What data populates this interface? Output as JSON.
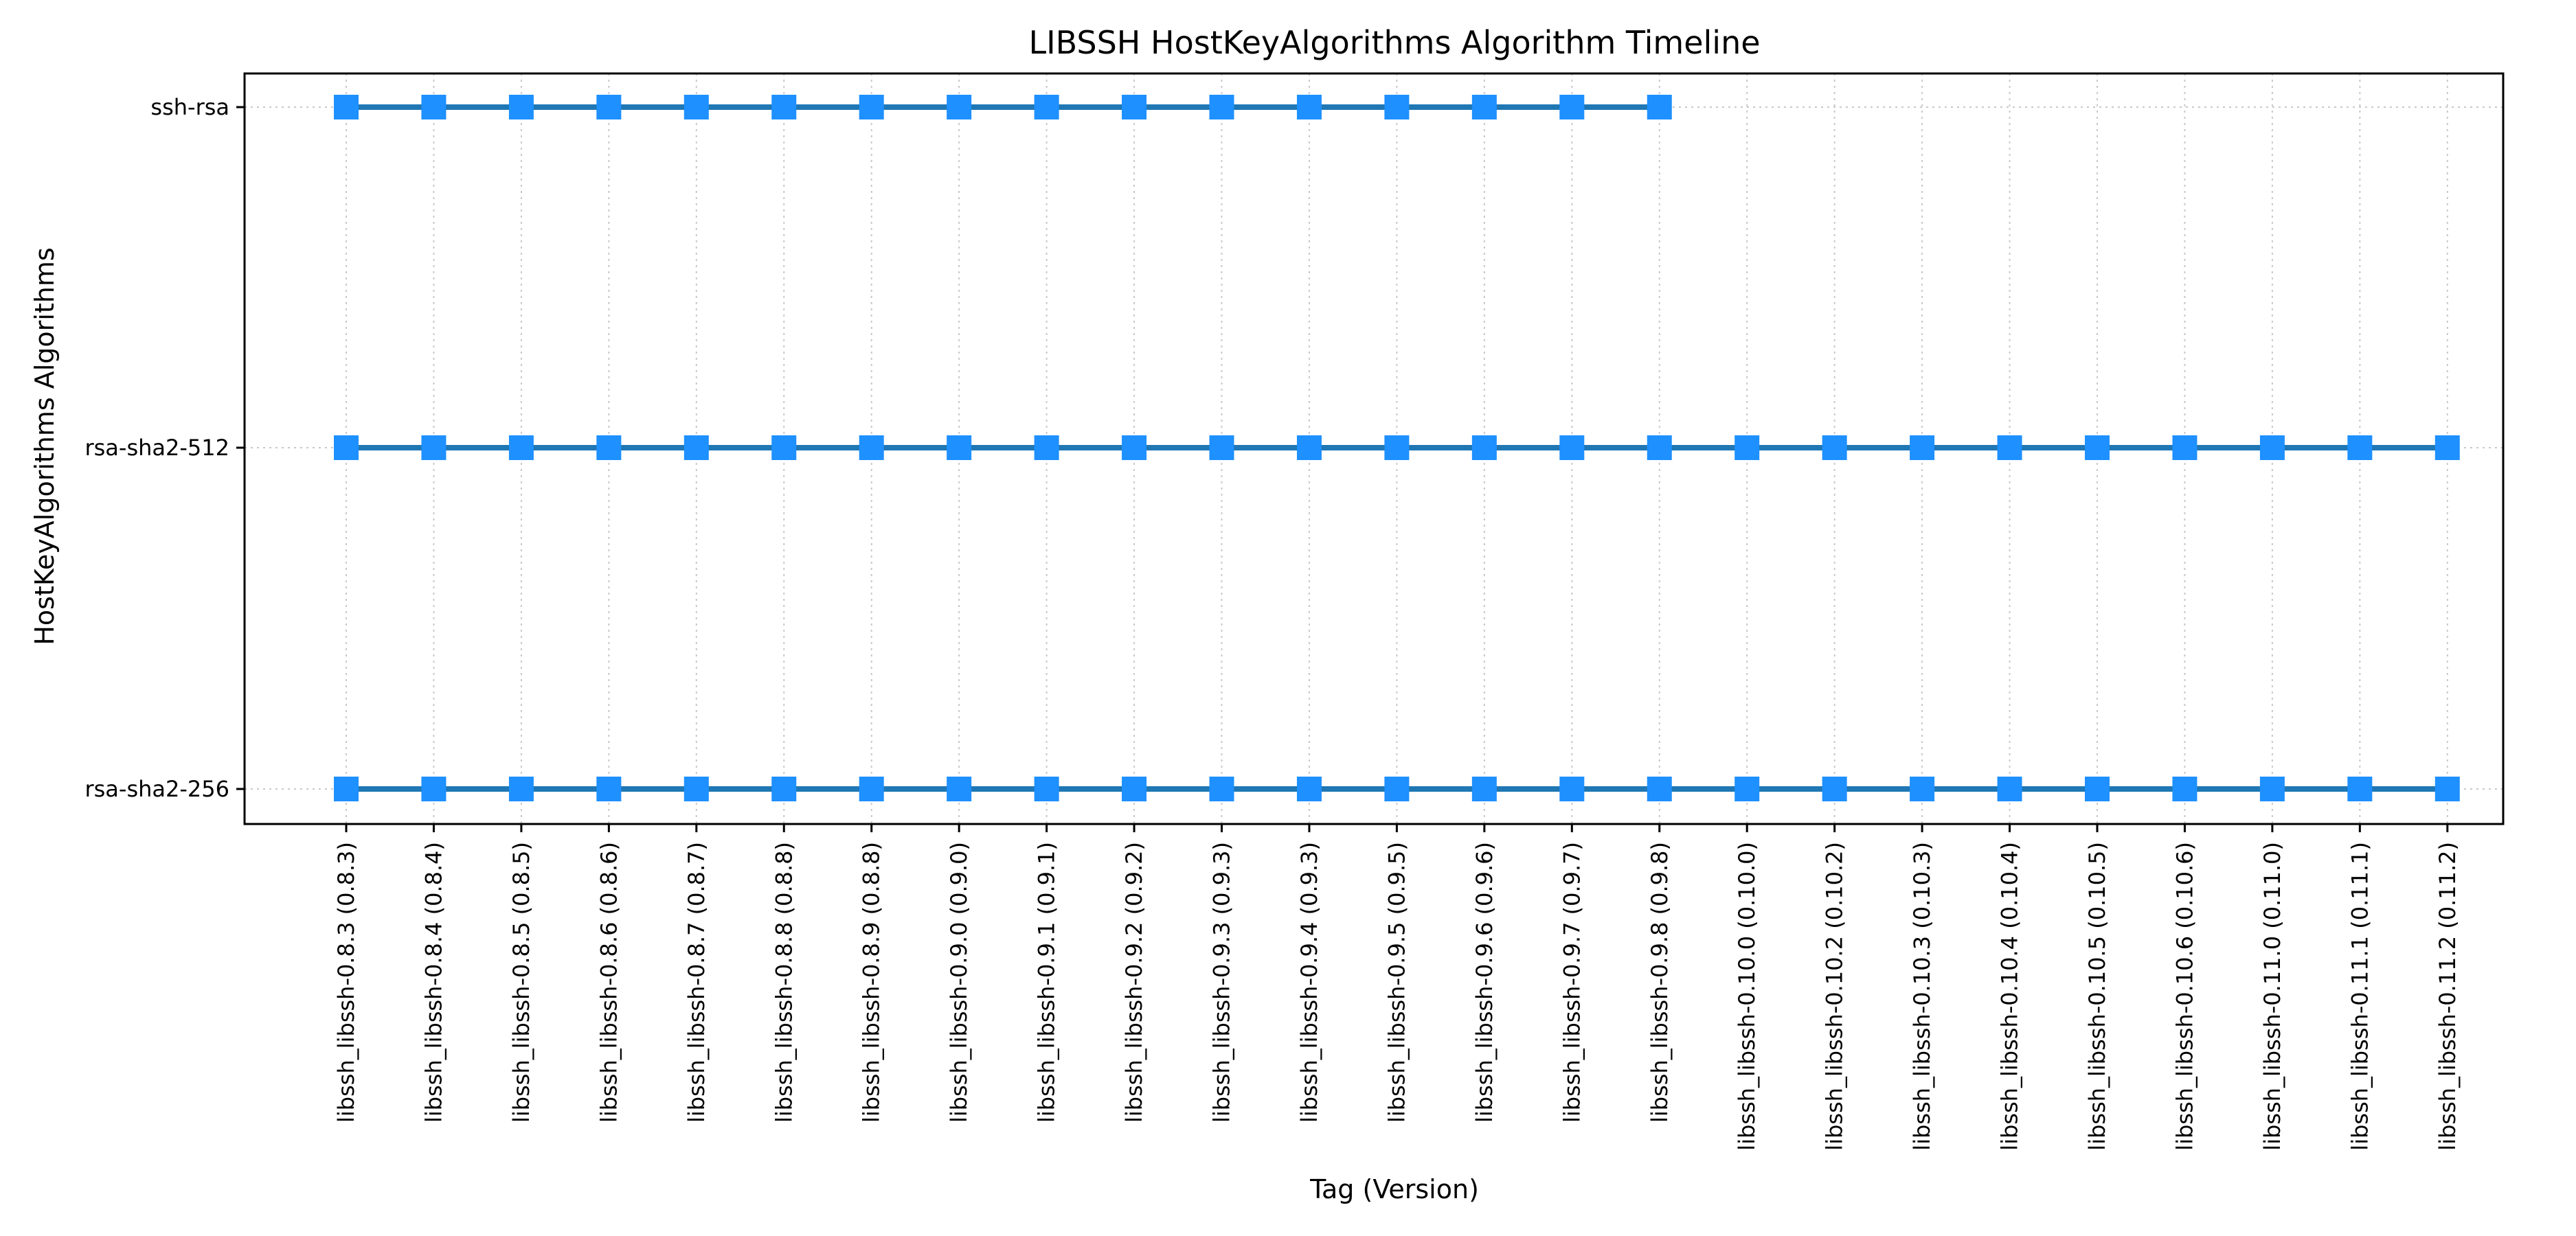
{
  "chart_data": {
    "type": "line",
    "title": "LIBSSH HostKeyAlgorithms Algorithm Timeline",
    "xlabel": "Tag (Version)",
    "ylabel": "HostKeyAlgorithms Algorithms",
    "grid": true,
    "categories": [
      "libssh_libssh-0.8.3 (0.8.3)",
      "libssh_libssh-0.8.4 (0.8.4)",
      "libssh_libssh-0.8.5 (0.8.5)",
      "libssh_libssh-0.8.6 (0.8.6)",
      "libssh_libssh-0.8.7 (0.8.7)",
      "libssh_libssh-0.8.8 (0.8.8)",
      "libssh_libssh-0.8.9 (0.8.8)",
      "libssh_libssh-0.9.0 (0.9.0)",
      "libssh_libssh-0.9.1 (0.9.1)",
      "libssh_libssh-0.9.2 (0.9.2)",
      "libssh_libssh-0.9.3 (0.9.3)",
      "libssh_libssh-0.9.4 (0.9.3)",
      "libssh_libssh-0.9.5 (0.9.5)",
      "libssh_libssh-0.9.6 (0.9.6)",
      "libssh_libssh-0.9.7 (0.9.7)",
      "libssh_libssh-0.9.8 (0.9.8)",
      "libssh_libssh-0.10.0 (0.10.0)",
      "libssh_libssh-0.10.2 (0.10.2)",
      "libssh_libssh-0.10.3 (0.10.3)",
      "libssh_libssh-0.10.4 (0.10.4)",
      "libssh_libssh-0.10.5 (0.10.5)",
      "libssh_libssh-0.10.6 (0.10.6)",
      "libssh_libssh-0.11.0 (0.11.0)",
      "libssh_libssh-0.11.1 (0.11.1)",
      "libssh_libssh-0.11.2 (0.11.2)"
    ],
    "y_categories": [
      "rsa-sha2-256",
      "rsa-sha2-512",
      "ssh-rsa"
    ],
    "series": [
      {
        "algorithm": "ssh-rsa",
        "present_from": 0,
        "present_to": 15
      },
      {
        "algorithm": "rsa-sha2-512",
        "present_from": 0,
        "present_to": 24
      },
      {
        "algorithm": "rsa-sha2-256",
        "present_from": 0,
        "present_to": 24
      }
    ],
    "colors": {
      "line": "#1f77b4",
      "marker": "#1e90ff"
    },
    "marker": "square"
  }
}
